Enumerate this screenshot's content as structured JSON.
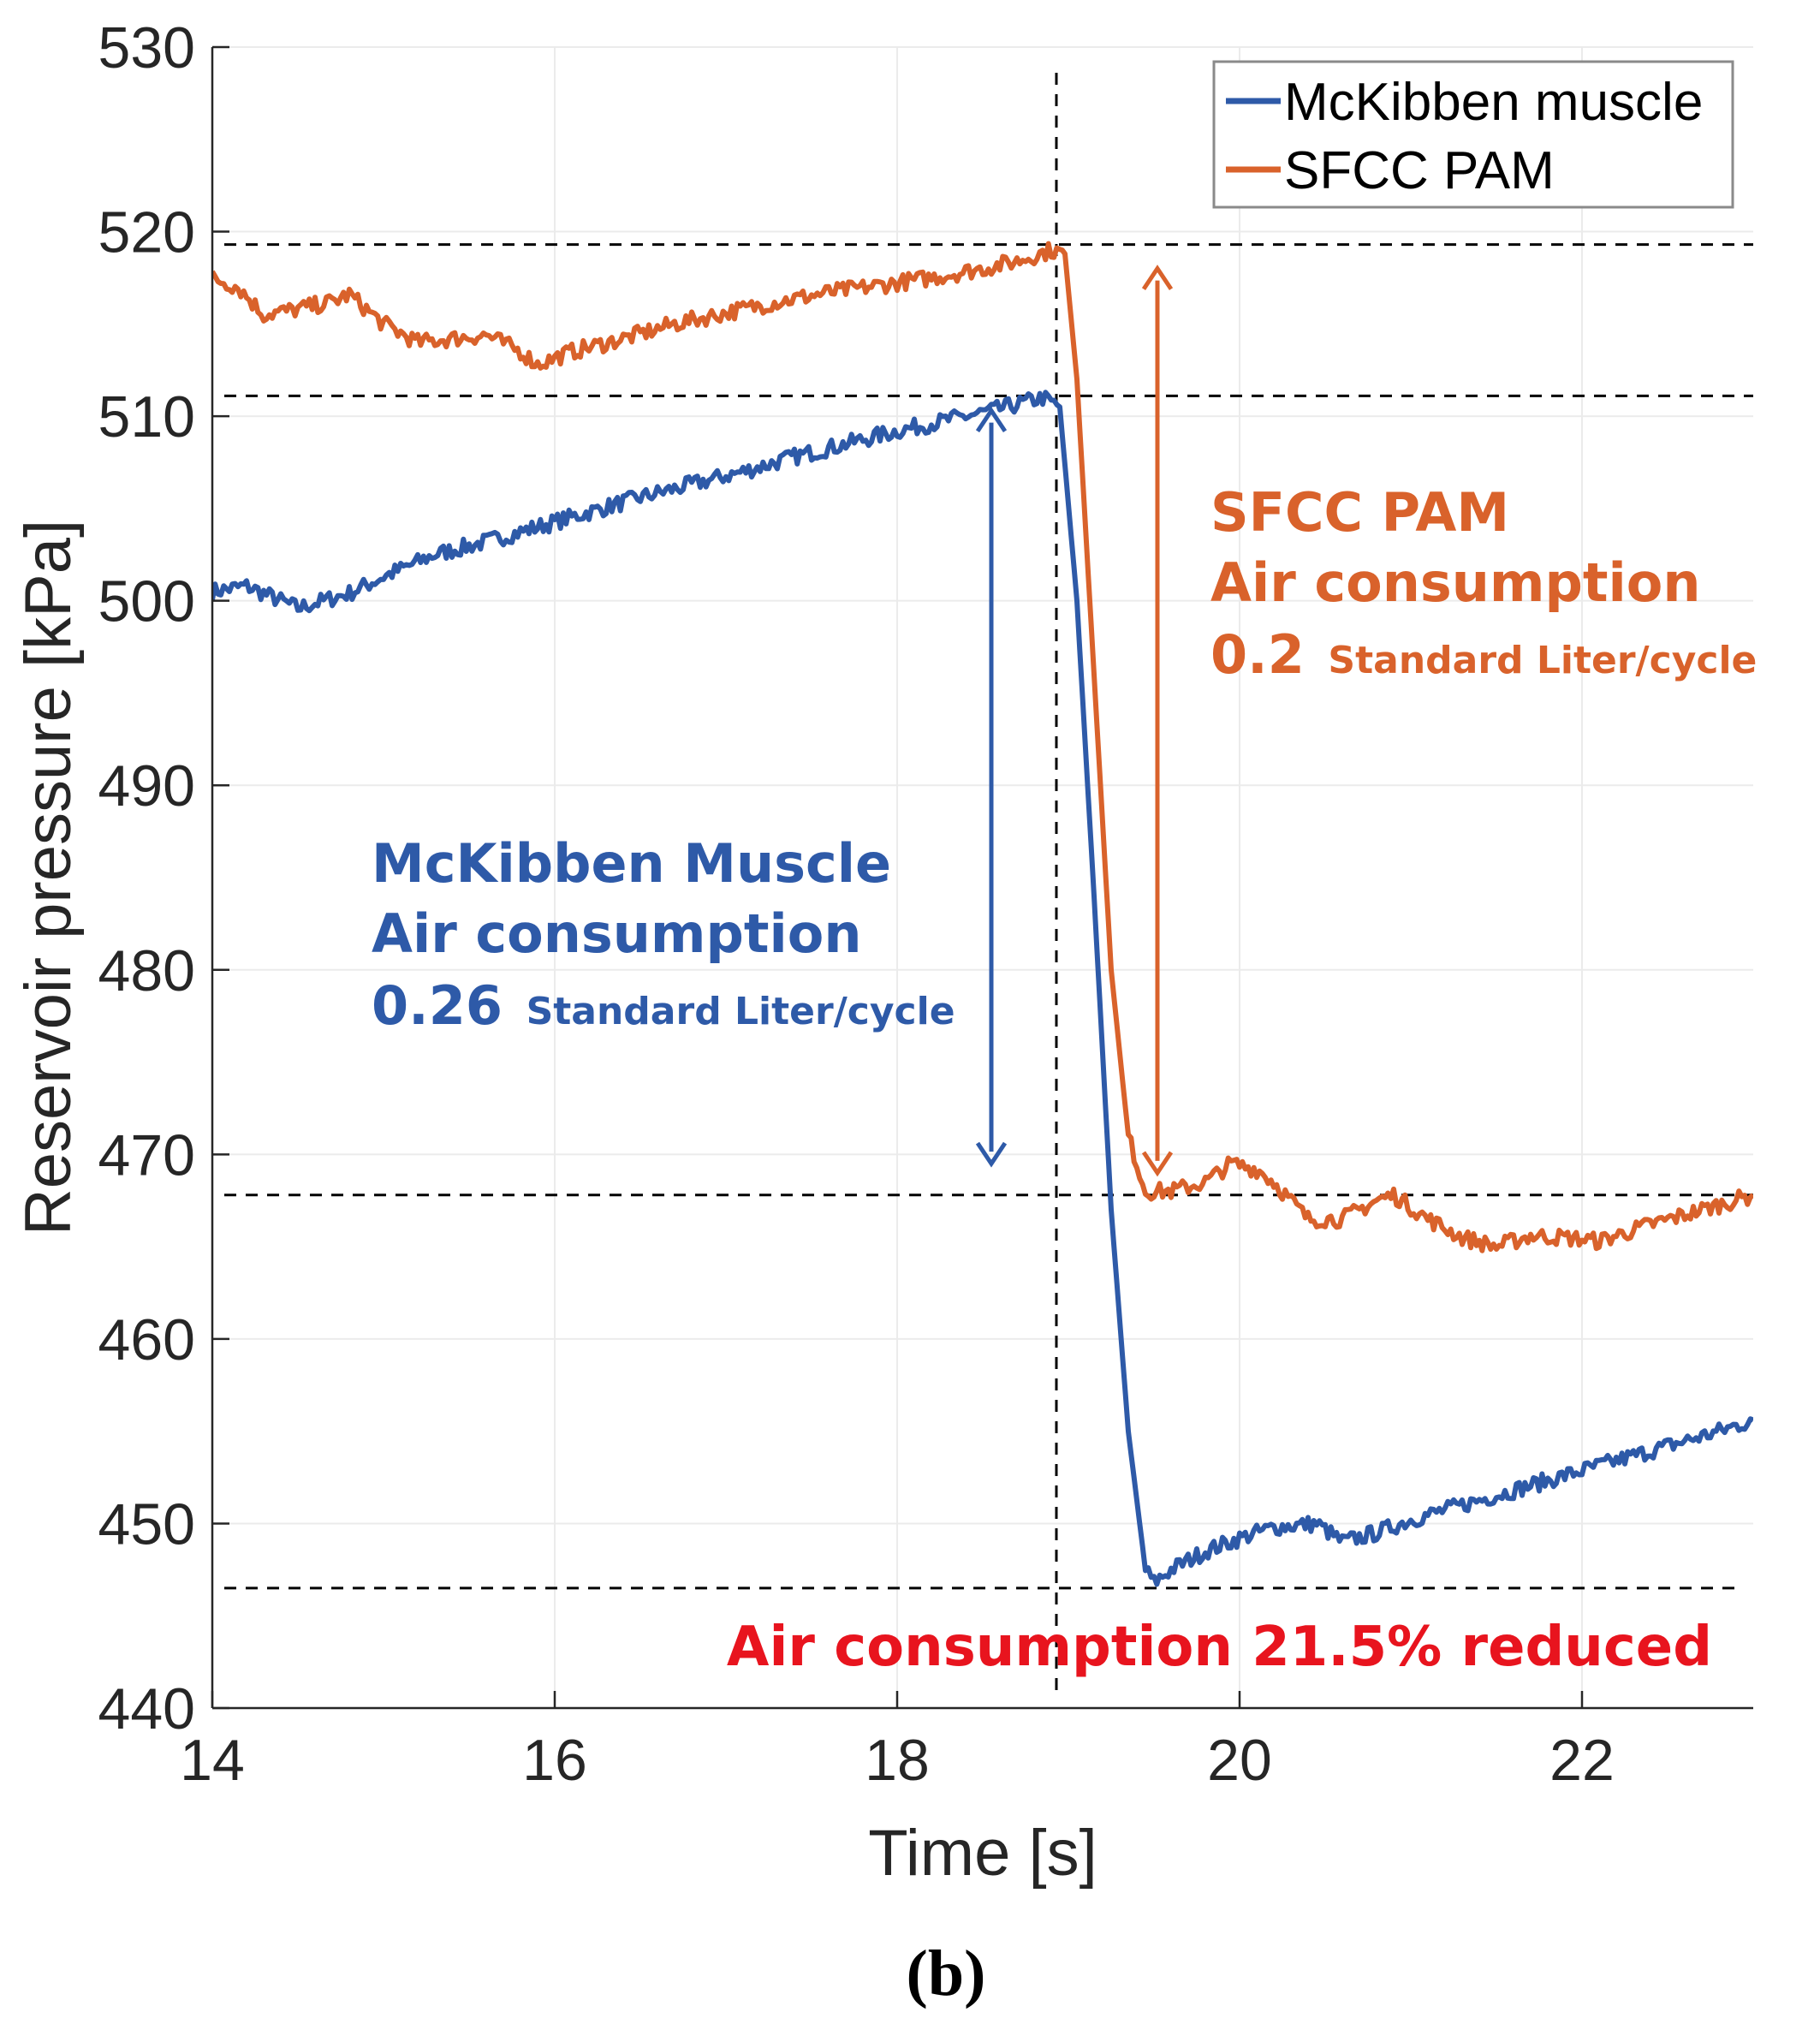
{
  "chart_data": {
    "type": "line",
    "title": "",
    "xlabel": "Time [s]",
    "ylabel": "Reservoir pressure [kPa]",
    "xlim": [
      14,
      23
    ],
    "ylim": [
      440,
      530
    ],
    "xticks": [
      14,
      16,
      18,
      20,
      22
    ],
    "yticks": [
      440,
      450,
      460,
      470,
      480,
      490,
      500,
      510,
      520,
      530
    ],
    "grid": true,
    "legend_position": "top-right",
    "series": [
      {
        "name": "McKibben muscle",
        "color": "#2E5AA8",
        "x": [
          14.0,
          14.2,
          14.5,
          14.8,
          15.0,
          15.3,
          15.6,
          15.9,
          16.2,
          16.5,
          16.8,
          17.1,
          17.4,
          17.7,
          18.0,
          18.3,
          18.6,
          18.85,
          18.95,
          19.05,
          19.15,
          19.25,
          19.35,
          19.45,
          19.5,
          19.6,
          19.8,
          20.0,
          20.2,
          20.45,
          20.6,
          20.8,
          21.0,
          21.3,
          21.6,
          21.9,
          22.2,
          22.5,
          22.8,
          23.0
        ],
        "y": [
          500.5,
          500.8,
          499.6,
          500.4,
          501.3,
          502.5,
          503.2,
          504.0,
          504.8,
          505.6,
          506.3,
          507.0,
          507.8,
          508.5,
          509.2,
          509.8,
          510.4,
          511.0,
          510.5,
          500.0,
          484.0,
          467.0,
          455.0,
          447.5,
          446.8,
          447.5,
          448.5,
          449.2,
          449.8,
          450.0,
          449.0,
          449.5,
          450.2,
          451.0,
          451.8,
          452.6,
          453.4,
          454.2,
          455.0,
          455.6
        ]
      },
      {
        "name": "SFCC PAM",
        "color": "#D9622B",
        "x": [
          14.0,
          14.15,
          14.3,
          14.5,
          14.7,
          14.8,
          15.0,
          15.2,
          15.4,
          15.6,
          15.8,
          15.9,
          16.1,
          16.4,
          16.7,
          17.0,
          17.3,
          17.6,
          17.9,
          18.2,
          18.5,
          18.7,
          18.9,
          18.98,
          19.05,
          19.15,
          19.25,
          19.35,
          19.45,
          19.6,
          19.8,
          19.95,
          20.1,
          20.2,
          20.4,
          20.6,
          20.8,
          20.9,
          21.1,
          21.3,
          21.5,
          21.7,
          21.9,
          22.1,
          22.4,
          22.7,
          23.0
        ],
        "y": [
          517.5,
          517.0,
          515.5,
          515.8,
          516.2,
          516.6,
          515.0,
          514.0,
          514.2,
          514.4,
          513.5,
          512.8,
          513.5,
          514.2,
          515.0,
          515.6,
          516.2,
          516.7,
          517.1,
          517.5,
          518.0,
          518.4,
          519.0,
          518.8,
          512.0,
          496.0,
          480.0,
          471.0,
          468.0,
          468.0,
          468.5,
          469.5,
          469.2,
          468.5,
          466.5,
          466.5,
          467.5,
          467.8,
          466.5,
          465.5,
          465.0,
          465.6,
          465.5,
          465.3,
          466.2,
          467.0,
          467.8
        ]
      }
    ],
    "reference_lines": {
      "vertical_x": 18.93,
      "horizontal_y": [
        519.3,
        511.1,
        467.8,
        446.5
      ]
    },
    "annotations": {
      "mckibben": {
        "line1": "McKibben Muscle",
        "line2": "Air consumption",
        "value": "0.26",
        "unit": "Standard Liter/cycle",
        "arrow_x": 18.55,
        "arrow_from": 510.3,
        "arrow_to": 469.5,
        "color": "#2E5AA8"
      },
      "sfcc": {
        "line1": "SFCC PAM",
        "line2": "Air consumption",
        "value": "0.2",
        "unit": "Standard Liter/cycle",
        "arrow_x": 19.52,
        "arrow_from": 518.0,
        "arrow_to": 469.0,
        "color": "#D9622B"
      },
      "reduction": {
        "text": "Air consumption 21.5% reduced",
        "color": "#E8141E"
      }
    }
  },
  "caption": "(b)"
}
